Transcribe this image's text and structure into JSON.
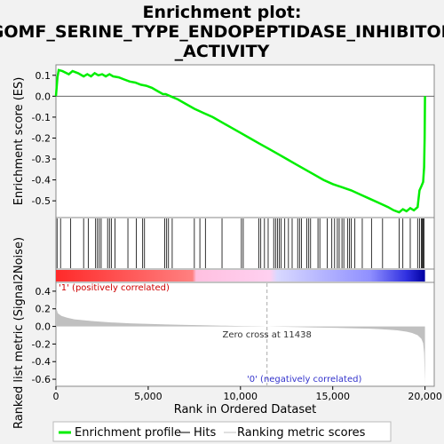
{
  "chart_data": {
    "type": "line",
    "title_lines": [
      "Enrichment plot:",
      "GOMF_SERINE_TYPE_ENDOPEPTIDASE_INHIBITOR",
      "_ACTIVITY"
    ],
    "es_panel": {
      "ylabel": "Enrichment score (ES)",
      "ylim": [
        -0.58,
        0.15
      ],
      "yticks": [
        0.1,
        0.0,
        -0.1,
        -0.2,
        -0.3,
        -0.4,
        -0.5
      ],
      "ytick_labels": [
        "0.1",
        "0.0",
        "-0.1",
        "-0.2",
        "-0.3",
        "-0.4",
        "-0.5"
      ],
      "series_name": "Enrichment profile",
      "color": "#00ee00",
      "x": [
        0,
        80,
        150,
        350,
        700,
        900,
        1200,
        1500,
        1700,
        1900,
        2100,
        2300,
        2500,
        2700,
        2900,
        3100,
        3400,
        3700,
        4000,
        4300,
        4600,
        4900,
        5200,
        5500,
        5800,
        5950,
        6200,
        6600,
        7000,
        7500,
        8000,
        8500,
        9000,
        9500,
        10000,
        10500,
        11000,
        11500,
        12000,
        12500,
        13000,
        13500,
        14000,
        14500,
        15000,
        15500,
        16000,
        16500,
        17000,
        17500,
        18000,
        18300,
        18600,
        18800,
        19000,
        19200,
        19400,
        19600,
        19700,
        19800,
        19900,
        19950,
        19980,
        20000
      ],
      "y": [
        0.0,
        0.09,
        0.125,
        0.12,
        0.105,
        0.12,
        0.11,
        0.095,
        0.105,
        0.095,
        0.11,
        0.1,
        0.105,
        0.095,
        0.105,
        0.095,
        0.09,
        0.08,
        0.07,
        0.065,
        0.055,
        0.05,
        0.04,
        0.025,
        0.01,
        0.01,
        0.0,
        -0.015,
        -0.035,
        -0.06,
        -0.08,
        -0.1,
        -0.125,
        -0.15,
        -0.175,
        -0.2,
        -0.225,
        -0.25,
        -0.275,
        -0.3,
        -0.325,
        -0.35,
        -0.375,
        -0.4,
        -0.42,
        -0.435,
        -0.45,
        -0.47,
        -0.49,
        -0.51,
        -0.53,
        -0.545,
        -0.555,
        -0.54,
        -0.55,
        -0.535,
        -0.545,
        -0.53,
        -0.45,
        -0.43,
        -0.41,
        -0.34,
        -0.2,
        0.0
      ]
    },
    "hits_panel": {
      "hit_positions": [
        60,
        250,
        800,
        1500,
        1750,
        2150,
        2250,
        2350,
        2450,
        2800,
        2900,
        3000,
        3200,
        3900,
        4350,
        4700,
        4800,
        5900,
        6000,
        6100,
        6300,
        7500,
        7800,
        8100,
        9000,
        10050,
        10150,
        11000,
        11100,
        11300,
        11500,
        11800,
        11900,
        12000,
        12100,
        12200,
        12400,
        12600,
        12800,
        13100,
        13200,
        13300,
        13600,
        13700,
        13800,
        14200,
        14300,
        14700,
        14950,
        15100,
        15250,
        15350,
        15500,
        15600,
        15800,
        15900,
        16000,
        16200,
        16600,
        17100,
        17700,
        18600,
        18800,
        19200,
        19600,
        19700,
        19800,
        19850,
        19900,
        19950
      ]
    },
    "metric_panel": {
      "ylabel": "Ranked list metric (Signal2Noise)",
      "ylim": [
        -0.68,
        0.5
      ],
      "yticks": [
        0.4,
        0.2,
        0.0,
        -0.2,
        -0.4,
        -0.6
      ],
      "ytick_labels": [
        "0.4",
        "0.2",
        "0.0",
        "-0.2",
        "-0.4",
        "-0.6"
      ],
      "series_name": "Ranking metric scores",
      "color": "#c0c0c0",
      "x": [
        0,
        30,
        100,
        300,
        600,
        1000,
        2000,
        3000,
        4000,
        5000,
        6000,
        7000,
        8000,
        9000,
        10000,
        11000,
        11438,
        12000,
        13000,
        14000,
        15000,
        16000,
        17000,
        17500,
        18000,
        18500,
        19000,
        19300,
        19600,
        19800,
        19900,
        19950,
        19980,
        20000
      ],
      "y": [
        0.27,
        0.2,
        0.15,
        0.12,
        0.1,
        0.08,
        0.06,
        0.045,
        0.035,
        0.028,
        0.022,
        0.017,
        0.013,
        0.009,
        0.005,
        0.002,
        0.0,
        -0.003,
        -0.007,
        -0.011,
        -0.015,
        -0.02,
        -0.025,
        -0.03,
        -0.037,
        -0.045,
        -0.06,
        -0.075,
        -0.1,
        -0.14,
        -0.19,
        -0.3,
        -0.5,
        -0.65
      ],
      "zero_cross_label": "Zero cross at 11438",
      "zero_cross": 11438,
      "pos_label": "'1' (positively correlated)",
      "neg_label": "'0' (negatively correlated)"
    },
    "xaxis": {
      "label": "Rank in Ordered Dataset",
      "xlim": [
        0,
        20500
      ],
      "ticks": [
        0,
        5000,
        10000,
        15000,
        20000
      ],
      "tick_labels": [
        "0",
        "5,000",
        "10,000",
        "15,000",
        "20,000"
      ]
    },
    "legend": {
      "position": "bottom",
      "items": [
        {
          "label": "Enrichment profile",
          "color": "#00ee00"
        },
        {
          "label": "Hits",
          "color": "#000000"
        },
        {
          "label": "Ranking metric scores",
          "color": "#c0c0c0"
        }
      ]
    }
  }
}
